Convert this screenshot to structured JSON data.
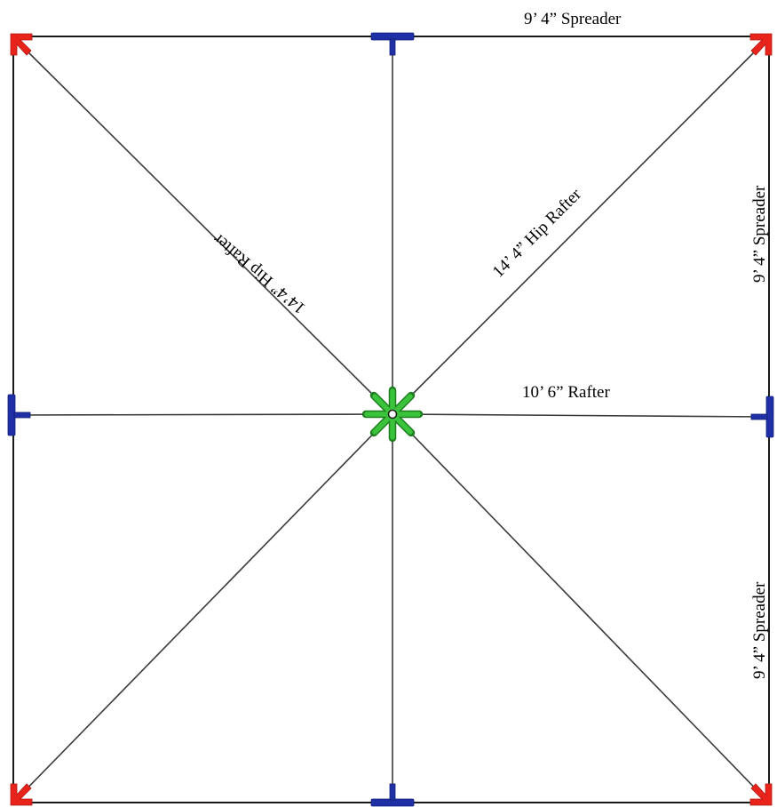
{
  "labels": {
    "top_spreader": "9’ 4” Spreader",
    "right_upper_spreader": "9’ 4” Spreader",
    "right_lower_spreader": "9’ 4” Spreader",
    "upper_left_hip_rafter": "14’4” Hip Rafter",
    "upper_right_hip_rafter": "14’ 4” Hip Rafter",
    "right_rafter": "10’ 6” Rafter"
  },
  "colors": {
    "corner_connector": "#e8231c",
    "t_connector": "#1f2fa6",
    "hub": "#3cc33c",
    "hub_outline": "#1e7d1e",
    "line": "#1a1a1a"
  },
  "icons": {
    "corner": "red-corner-bracket-icon",
    "tee": "blue-t-connector-icon",
    "hub": "green-star-hub-icon"
  }
}
